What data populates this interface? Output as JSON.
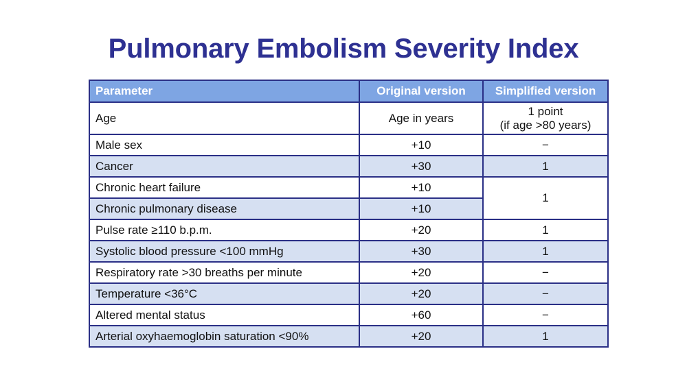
{
  "title": "Pulmonary Embolism Severity Index",
  "table": {
    "headers": {
      "parameter": "Parameter",
      "original": "Original version",
      "simplified": "Simplified version"
    },
    "rows": [
      {
        "parameter": "Age",
        "original": "Age in years",
        "simplified_line1": "1 point",
        "simplified_line2": "(if age >80 years)"
      },
      {
        "parameter": "Male sex",
        "original": "+10",
        "simplified": "−"
      },
      {
        "parameter": "Cancer",
        "original": "+30",
        "simplified": "1"
      },
      {
        "parameter": "Chronic heart failure",
        "original": "+10",
        "simplified": "1"
      },
      {
        "parameter": "Chronic pulmonary disease",
        "original": "+10"
      },
      {
        "parameter": "Pulse rate ≥110 b.p.m.",
        "original": "+20",
        "simplified": "1"
      },
      {
        "parameter": "Systolic blood pressure <100 mmHg",
        "original": "+30",
        "simplified": "1"
      },
      {
        "parameter": "Respiratory rate >30 breaths per minute",
        "original": "+20",
        "simplified": "−"
      },
      {
        "parameter": "Temperature <36°C",
        "original": "+20",
        "simplified": "−"
      },
      {
        "parameter": "Altered mental status",
        "original": "+60",
        "simplified": "−"
      },
      {
        "parameter": "Arterial oxyhaemoglobin saturation <90%",
        "original": "+20",
        "simplified": "1"
      }
    ]
  },
  "colors": {
    "title": "#2e3192",
    "header_bg": "#7ea5e3",
    "stripe_bg": "#d6e0f2",
    "border": "#2a2f86"
  }
}
